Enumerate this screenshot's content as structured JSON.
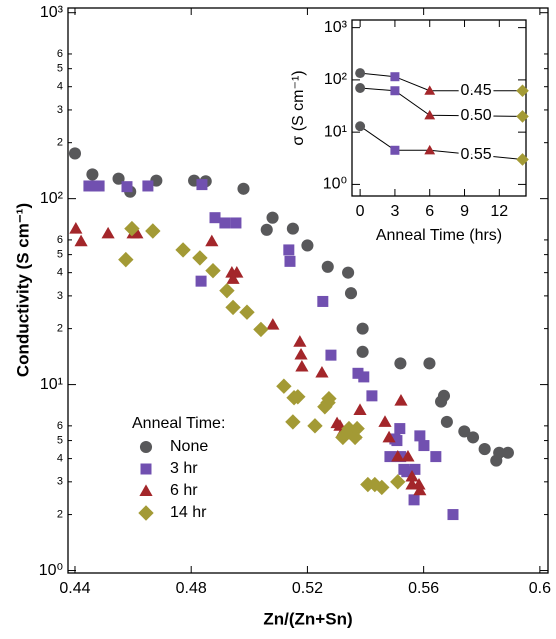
{
  "chart_data": [
    {
      "type": "scatter",
      "x_label": "Zn/(Zn+Sn)",
      "y_label": "Conductivity (S cm⁻¹)",
      "xlim": [
        0.4376,
        0.6028
      ],
      "xticks": [
        0.44,
        0.48,
        0.52,
        0.56,
        0.6
      ],
      "ylim": [
        0.97,
        1060
      ],
      "log_y": true,
      "grid": false,
      "yticks": [
        {
          "value": 1,
          "label": "10⁰"
        },
        2,
        3,
        4,
        5,
        6,
        {
          "value": 10,
          "label": "10¹"
        },
        {
          "value": 20,
          "label": "2"
        },
        {
          "value": 30,
          "label": "3"
        },
        {
          "value": 40,
          "label": "4"
        },
        {
          "value": 50,
          "label": "5"
        },
        {
          "value": 60,
          "label": "6"
        },
        {
          "value": 100,
          "label": "10²"
        },
        {
          "value": 200,
          "label": "2"
        },
        {
          "value": 300,
          "label": "3"
        },
        {
          "value": 400,
          "label": "4"
        },
        {
          "value": 500,
          "label": "5"
        },
        {
          "value": 600,
          "label": "6"
        },
        {
          "value": 1000,
          "label": "10³"
        }
      ],
      "legend_title": "Anneal Time:",
      "legend_position": "lower left",
      "series": [
        {
          "name": "None",
          "color": "#58585a",
          "marker": "circle",
          "x": [
            0.44,
            0.446,
            0.455,
            0.459,
            0.468,
            0.481,
            0.485,
            0.498,
            0.508,
            0.506,
            0.515,
            0.52,
            0.527,
            0.534,
            0.535,
            0.539,
            0.539,
            0.552,
            0.562,
            0.567,
            0.566,
            0.568,
            0.574,
            0.577,
            0.581,
            0.585,
            0.586,
            0.589
          ],
          "values": [
            175,
            135,
            128,
            109,
            125,
            125,
            124,
            113,
            79,
            68,
            69,
            56,
            43,
            40,
            31,
            20,
            15,
            13,
            13,
            8.7,
            8.1,
            6.3,
            5.6,
            5.2,
            4.5,
            3.9,
            4.3,
            4.3
          ]
        },
        {
          "name": "3 hr",
          "color": "#7150b0",
          "marker": "square",
          "x": [
            0.4448,
            0.4469,
            0.4483,
            0.4579,
            0.4651,
            0.4837,
            0.4882,
            0.4916,
            0.4954,
            0.4834,
            0.5136,
            0.514,
            0.5253,
            0.5281,
            0.5374,
            0.5394,
            0.5422,
            0.5518,
            0.5508,
            0.5484,
            0.5521,
            0.5532,
            0.5501,
            0.5587,
            0.5601,
            0.557,
            0.5542,
            0.5567,
            0.5642,
            0.5701
          ],
          "values": [
            117,
            117,
            117,
            116,
            117,
            119,
            79,
            74,
            74,
            36,
            53,
            46,
            28,
            14.4,
            11.5,
            11,
            8.7,
            5.8,
            5.0,
            4.1,
            4.1,
            3.5,
            5.1,
            5.3,
            4.7,
            3.5,
            3.4,
            2.4,
            4.1,
            2.0
          ]
        },
        {
          "name": "6 hr",
          "color": "#a3262a",
          "marker": "triangle",
          "x": [
            0.4403,
            0.4421,
            0.4514,
            0.46,
            0.4613,
            0.4871,
            0.494,
            0.4944,
            0.4957,
            0.5081,
            0.5174,
            0.5178,
            0.5181,
            0.525,
            0.5302,
            0.5312,
            0.5322,
            0.5364,
            0.5381,
            0.5467,
            0.5522,
            0.5511,
            0.5546,
            0.556,
            0.5584,
            0.556,
            0.5587,
            0.5481
          ],
          "values": [
            69,
            59,
            65,
            65,
            65,
            59,
            40,
            37,
            40,
            21,
            17,
            14.5,
            12.5,
            11.6,
            6.2,
            6.0,
            5.6,
            5.4,
            7.3,
            6.3,
            8.2,
            4.1,
            4.1,
            3.2,
            2.9,
            2.9,
            2.7,
            5.2
          ]
        },
        {
          "name": "14 hr",
          "color": "#a39a35",
          "marker": "diamond",
          "x": [
            0.4596,
            0.4668,
            0.4575,
            0.4772,
            0.483,
            0.4875,
            0.4923,
            0.4944,
            0.4992,
            0.504,
            0.5119,
            0.5154,
            0.5167,
            0.515,
            0.5226,
            0.5271,
            0.526,
            0.5274,
            0.5322,
            0.5329,
            0.5343,
            0.5364,
            0.5371,
            0.5408,
            0.5432,
            0.5456,
            0.5511
          ],
          "values": [
            69,
            67,
            47,
            53,
            48,
            41,
            32,
            26,
            24.5,
            19.8,
            9.8,
            8.5,
            8.6,
            6.3,
            6.0,
            8.0,
            7.6,
            8.4,
            5.2,
            5.4,
            5.8,
            5.2,
            5.8,
            2.9,
            2.9,
            2.8,
            3.0
          ]
        }
      ]
    },
    {
      "type": "line",
      "x_label": "Anneal Time (hrs)",
      "y_label": "σ (S cm⁻¹)",
      "xlim": [
        -0.7,
        14.3
      ],
      "xticks": [
        0,
        3,
        6,
        9,
        12
      ],
      "ylim": [
        0.6,
        1400
      ],
      "log_y": true,
      "yticks": [
        {
          "value": 1,
          "label": "10⁰"
        },
        {
          "value": 10,
          "label": "10¹"
        },
        {
          "value": 100,
          "label": "10²"
        },
        {
          "value": 1000,
          "label": "10³"
        }
      ],
      "x": [
        0,
        3,
        6,
        14
      ],
      "point_markers": [
        "circle",
        "square",
        "triangle",
        "diamond"
      ],
      "point_colors": [
        "#58585a",
        "#7150b0",
        "#a3262a",
        "#a39a35"
      ],
      "line_color": "#000000",
      "series": [
        {
          "name": "0.45",
          "values": [
            135,
            115,
            62,
            62
          ]
        },
        {
          "name": "0.50",
          "values": [
            70,
            62,
            21,
            20
          ]
        },
        {
          "name": "0.55",
          "values": [
            13,
            4.5,
            4.5,
            3.0
          ]
        }
      ]
    }
  ]
}
